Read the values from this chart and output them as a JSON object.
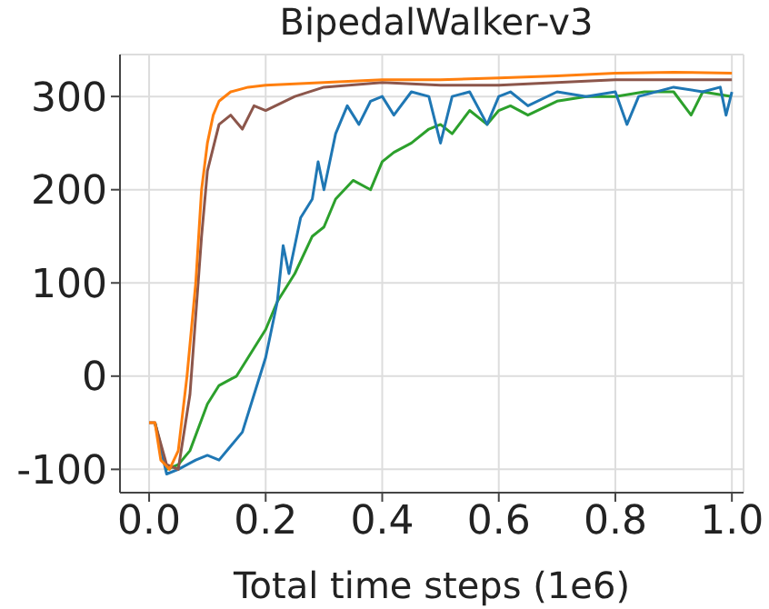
{
  "chart_data": {
    "type": "line",
    "title": "BipedalWalker-v3",
    "xlabel": "Total time steps (1e6)",
    "xlim": [
      -0.05,
      1.02
    ],
    "xticks": [
      {
        "value": 0,
        "label": "0.0"
      },
      {
        "value": 0.2,
        "label": "0.2"
      },
      {
        "value": 0.4,
        "label": "0.4"
      },
      {
        "value": 0.6,
        "label": "0.6"
      },
      {
        "value": 0.8,
        "label": "0.8"
      },
      {
        "value": 1,
        "label": "1.0"
      }
    ],
    "ylim": [
      -125,
      345
    ],
    "yticks": [
      -100,
      0,
      100,
      200,
      300
    ],
    "grid": true,
    "legend": false,
    "marker": "none",
    "line_style": "solid",
    "series": [
      {
        "color": "#2ca02c",
        "x": [
          0.01,
          0.03,
          0.05,
          0.07,
          0.1,
          0.12,
          0.15,
          0.18,
          0.2,
          0.22,
          0.25,
          0.28,
          0.3,
          0.32,
          0.35,
          0.38,
          0.4,
          0.42,
          0.45,
          0.48,
          0.5,
          0.52,
          0.55,
          0.58,
          0.6,
          0.62,
          0.65,
          0.7,
          0.75,
          0.8,
          0.85,
          0.9,
          0.93,
          0.95,
          1.0
        ],
        "values": [
          -50,
          -100,
          -95,
          -80,
          -30,
          -10,
          0,
          30,
          50,
          80,
          110,
          150,
          160,
          190,
          210,
          200,
          230,
          240,
          250,
          265,
          270,
          260,
          285,
          270,
          285,
          290,
          280,
          295,
          300,
          300,
          305,
          305,
          280,
          305,
          300
        ]
      },
      {
        "color": "#1f77b4",
        "x": [
          0.01,
          0.03,
          0.05,
          0.08,
          0.1,
          0.12,
          0.14,
          0.16,
          0.18,
          0.2,
          0.22,
          0.23,
          0.24,
          0.26,
          0.28,
          0.29,
          0.3,
          0.32,
          0.34,
          0.36,
          0.38,
          0.4,
          0.42,
          0.45,
          0.48,
          0.5,
          0.52,
          0.55,
          0.58,
          0.6,
          0.62,
          0.65,
          0.7,
          0.75,
          0.8,
          0.82,
          0.84,
          0.9,
          0.95,
          0.98,
          0.99,
          1.0
        ],
        "values": [
          -50,
          -105,
          -100,
          -90,
          -85,
          -90,
          -75,
          -60,
          -20,
          20,
          80,
          140,
          110,
          170,
          190,
          230,
          200,
          260,
          290,
          270,
          295,
          300,
          280,
          305,
          300,
          250,
          300,
          305,
          270,
          300,
          305,
          290,
          305,
          300,
          305,
          270,
          300,
          310,
          305,
          310,
          280,
          305
        ]
      },
      {
        "color": "#8c564b",
        "x": [
          0,
          0.01,
          0.03,
          0.05,
          0.07,
          0.09,
          0.1,
          0.12,
          0.14,
          0.16,
          0.18,
          0.2,
          0.25,
          0.3,
          0.4,
          0.5,
          0.6,
          0.7,
          0.8,
          0.9,
          1.0
        ],
        "values": [
          -50,
          -50,
          -95,
          -100,
          -20,
          150,
          220,
          270,
          280,
          265,
          290,
          285,
          300,
          310,
          315,
          312,
          312,
          315,
          318,
          318,
          318
        ]
      },
      {
        "color": "#ff7f0e",
        "x": [
          0,
          0.01,
          0.02,
          0.035,
          0.05,
          0.065,
          0.08,
          0.09,
          0.1,
          0.11,
          0.12,
          0.14,
          0.17,
          0.2,
          0.3,
          0.4,
          0.5,
          0.6,
          0.7,
          0.8,
          0.9,
          1.0
        ],
        "values": [
          -50,
          -50,
          -90,
          -100,
          -80,
          0,
          100,
          200,
          250,
          280,
          295,
          305,
          310,
          312,
          315,
          318,
          318,
          320,
          322,
          325,
          326,
          325
        ]
      }
    ]
  }
}
